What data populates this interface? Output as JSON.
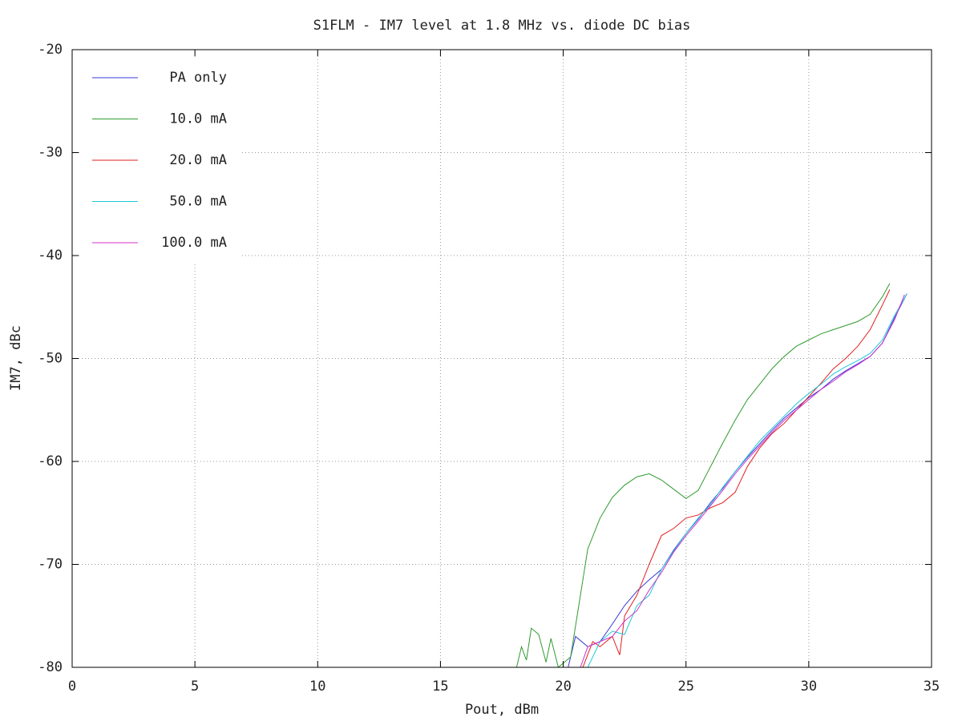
{
  "chart_data": {
    "type": "line",
    "title": "S1FLM - IM7 level at 1.8 MHz vs. diode DC bias",
    "x_label": "Pout, dBm",
    "y_label": "IM7, dBc",
    "xlim": [
      0,
      35
    ],
    "xticks": [
      0,
      5,
      10,
      15,
      20,
      25,
      30,
      35
    ],
    "ylim": [
      -80,
      -20
    ],
    "yticks": [
      -80,
      -70,
      -60,
      -50,
      -40,
      -30,
      -20
    ],
    "grid": true,
    "legend": "top-left",
    "series": [
      {
        "name": "PA only",
        "color": "#3a3ad8",
        "x": [
          20.2,
          20.5,
          21,
          21.5,
          22,
          22.5,
          23,
          23.5,
          24,
          24.5,
          25,
          25.5,
          26,
          26.5,
          27,
          27.5,
          28,
          28.5,
          29,
          29.5,
          30,
          30.5,
          31,
          31.5,
          32,
          32.5,
          33,
          33.5,
          34
        ],
        "values": [
          -80,
          -77,
          -78,
          -77.5,
          -75.8,
          -74,
          -72.6,
          -71.5,
          -70.5,
          -68.6,
          -67,
          -65.6,
          -64,
          -62.6,
          -61,
          -59.6,
          -58.3,
          -57,
          -55.8,
          -54.8,
          -53.8,
          -53,
          -52,
          -51.2,
          -50.5,
          -49.8,
          -48.5,
          -46,
          -43.7
        ]
      },
      {
        "name": "10.0 mA",
        "color": "#2e9a2e",
        "x": [
          18.1,
          18.3,
          18.5,
          18.7,
          19,
          19.3,
          19.5,
          19.8,
          20.3,
          20.7,
          21,
          21.5,
          22,
          22.5,
          23,
          23.5,
          24,
          24.5,
          25,
          25.5,
          26,
          26.5,
          27,
          27.5,
          28,
          28.5,
          29,
          29.5,
          30,
          30.5,
          31,
          31.5,
          32,
          32.5,
          33,
          33.3
        ],
        "values": [
          -80,
          -78,
          -79.3,
          -76.2,
          -76.8,
          -79.5,
          -77.2,
          -80,
          -79,
          -73,
          -68.5,
          -65.5,
          -63.5,
          -62.3,
          -61.5,
          -61.2,
          -61.8,
          -62.7,
          -63.6,
          -62.8,
          -60.5,
          -58.2,
          -56,
          -54,
          -52.5,
          -51,
          -49.8,
          -48.8,
          -48.2,
          -47.6,
          -47.2,
          -46.8,
          -46.4,
          -45.7,
          -44,
          -42.7
        ]
      },
      {
        "name": "20.0 mA",
        "color": "#e02020",
        "x": [
          20.8,
          21.2,
          21.5,
          22,
          22.3,
          22.5,
          23,
          23.5,
          24,
          24.5,
          25,
          25.5,
          26,
          26.5,
          27,
          27.5,
          28,
          28.5,
          29,
          29.5,
          30,
          30.5,
          31,
          31.5,
          32,
          32.5,
          33,
          33.3
        ],
        "values": [
          -80,
          -77.5,
          -78,
          -77,
          -78.8,
          -75,
          -73,
          -70,
          -67.2,
          -66.5,
          -65.5,
          -65.2,
          -64.5,
          -64,
          -63,
          -60.5,
          -58.7,
          -57.3,
          -56.3,
          -55,
          -53.7,
          -52.4,
          -51,
          -50,
          -48.8,
          -47.2,
          -44.8,
          -43.3
        ]
      },
      {
        "name": "50.0 mA",
        "color": "#20c8d8",
        "x": [
          21,
          21.5,
          22,
          22.5,
          23,
          23.5,
          24,
          24.5,
          25,
          25.5,
          26,
          26.5,
          27,
          27.5,
          28,
          28.5,
          29,
          29.5,
          30,
          30.5,
          31,
          31.5,
          32,
          32.5,
          33,
          33.5,
          34
        ],
        "values": [
          -80,
          -77.5,
          -76.5,
          -76.8,
          -74,
          -73,
          -70.5,
          -68.7,
          -67,
          -65.5,
          -64.2,
          -62.5,
          -61,
          -59.5,
          -58,
          -56.8,
          -55.6,
          -54.4,
          -53.4,
          -52.5,
          -51.5,
          -50.8,
          -50.2,
          -49.5,
          -48.2,
          -45.8,
          -43.7
        ]
      },
      {
        "name": "100.0 mA",
        "color": "#d030c8",
        "x": [
          20.7,
          21,
          21.5,
          22,
          22.5,
          23,
          23.5,
          24,
          24.5,
          25,
          25.5,
          26,
          26.5,
          27,
          27.5,
          28,
          28.5,
          29,
          29.5,
          30,
          30.5,
          31,
          31.5,
          32,
          32.5,
          33,
          33.5,
          33.9
        ],
        "values": [
          -80,
          -78,
          -77.5,
          -77,
          -75.5,
          -74.5,
          -72.5,
          -70.8,
          -68.8,
          -67.2,
          -65.8,
          -64.3,
          -62.8,
          -61.2,
          -59.8,
          -58.5,
          -57.2,
          -56,
          -55,
          -54,
          -53,
          -52.2,
          -51.3,
          -50.6,
          -49.8,
          -48.5,
          -46.2,
          -43.8
        ]
      }
    ]
  }
}
